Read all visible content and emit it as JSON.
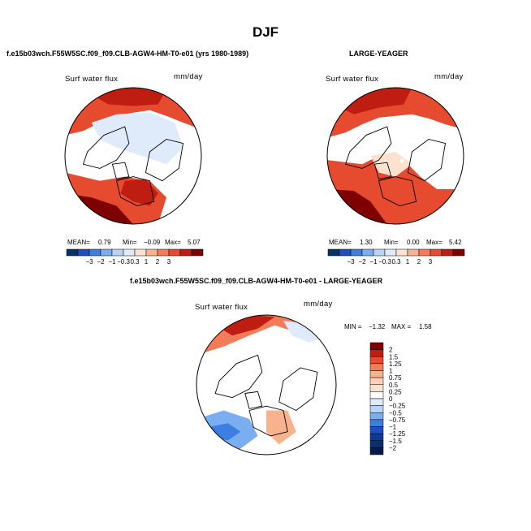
{
  "figure": {
    "title": "DJF"
  },
  "colors": {
    "scale": [
      "#08306b",
      "#1e4fbf",
      "#3c7fe0",
      "#7aaef0",
      "#b7d4f7",
      "#dfeafa",
      "#fde2d0",
      "#f9b28e",
      "#f47b57",
      "#e64b2f",
      "#c01d12",
      "#7f0000"
    ],
    "land_outline": "#000000",
    "ocean_neutral": "#ffffff"
  },
  "chart_data": [
    {
      "type": "heatmap",
      "projection": "polar-stereographic",
      "title": "f.e15b03wch.F55W5SC.f09_f09.CLB-AGW4-HM-T0-e01 (yrs 1980-1989)",
      "field": "Surf water flux",
      "units": "mm/day",
      "stats": {
        "mean_label": "MEAN=",
        "mean": "0.79",
        "min_label": "Min=",
        "min": "−0.09",
        "max_label": "Max=",
        "max": "5.07"
      },
      "colorbar": {
        "orientation": "horizontal",
        "ticks": [
          "−3",
          "−2",
          "−1",
          "−0.3",
          "0.3",
          "1",
          "2",
          "3"
        ]
      }
    },
    {
      "type": "heatmap",
      "projection": "polar-stereographic",
      "title": "LARGE-YEAGER",
      "field": "Surf water flux",
      "units": "mm/day",
      "stats": {
        "mean_label": "MEAN=",
        "mean": "1.30",
        "min_label": "Min=",
        "min": "0.00",
        "max_label": "Max=",
        "max": "5.42"
      },
      "colorbar": {
        "orientation": "horizontal",
        "ticks": [
          "−3",
          "−2",
          "−1",
          "−0.3",
          "0.3",
          "1",
          "2",
          "3"
        ]
      }
    },
    {
      "type": "heatmap",
      "projection": "polar-stereographic",
      "title": "f.e15b03wch.F55W5SC.f09_f09.CLB-AGW4-HM-T0-e01 - LARGE-YEAGER",
      "field": "Surf water flux",
      "units": "mm/day",
      "stats_line": {
        "min_label": "MIN =",
        "min": "−1.32",
        "max_label": "MAX =",
        "max": "1.58"
      },
      "colorbar": {
        "orientation": "vertical",
        "ticks": [
          "2",
          "1.5",
          "1.25",
          "1",
          "0.75",
          "0.5",
          "0.25",
          "0",
          "−0.25",
          "−0.5",
          "−0.75",
          "−1",
          "−1.25",
          "−1.5",
          "−2"
        ]
      }
    }
  ]
}
